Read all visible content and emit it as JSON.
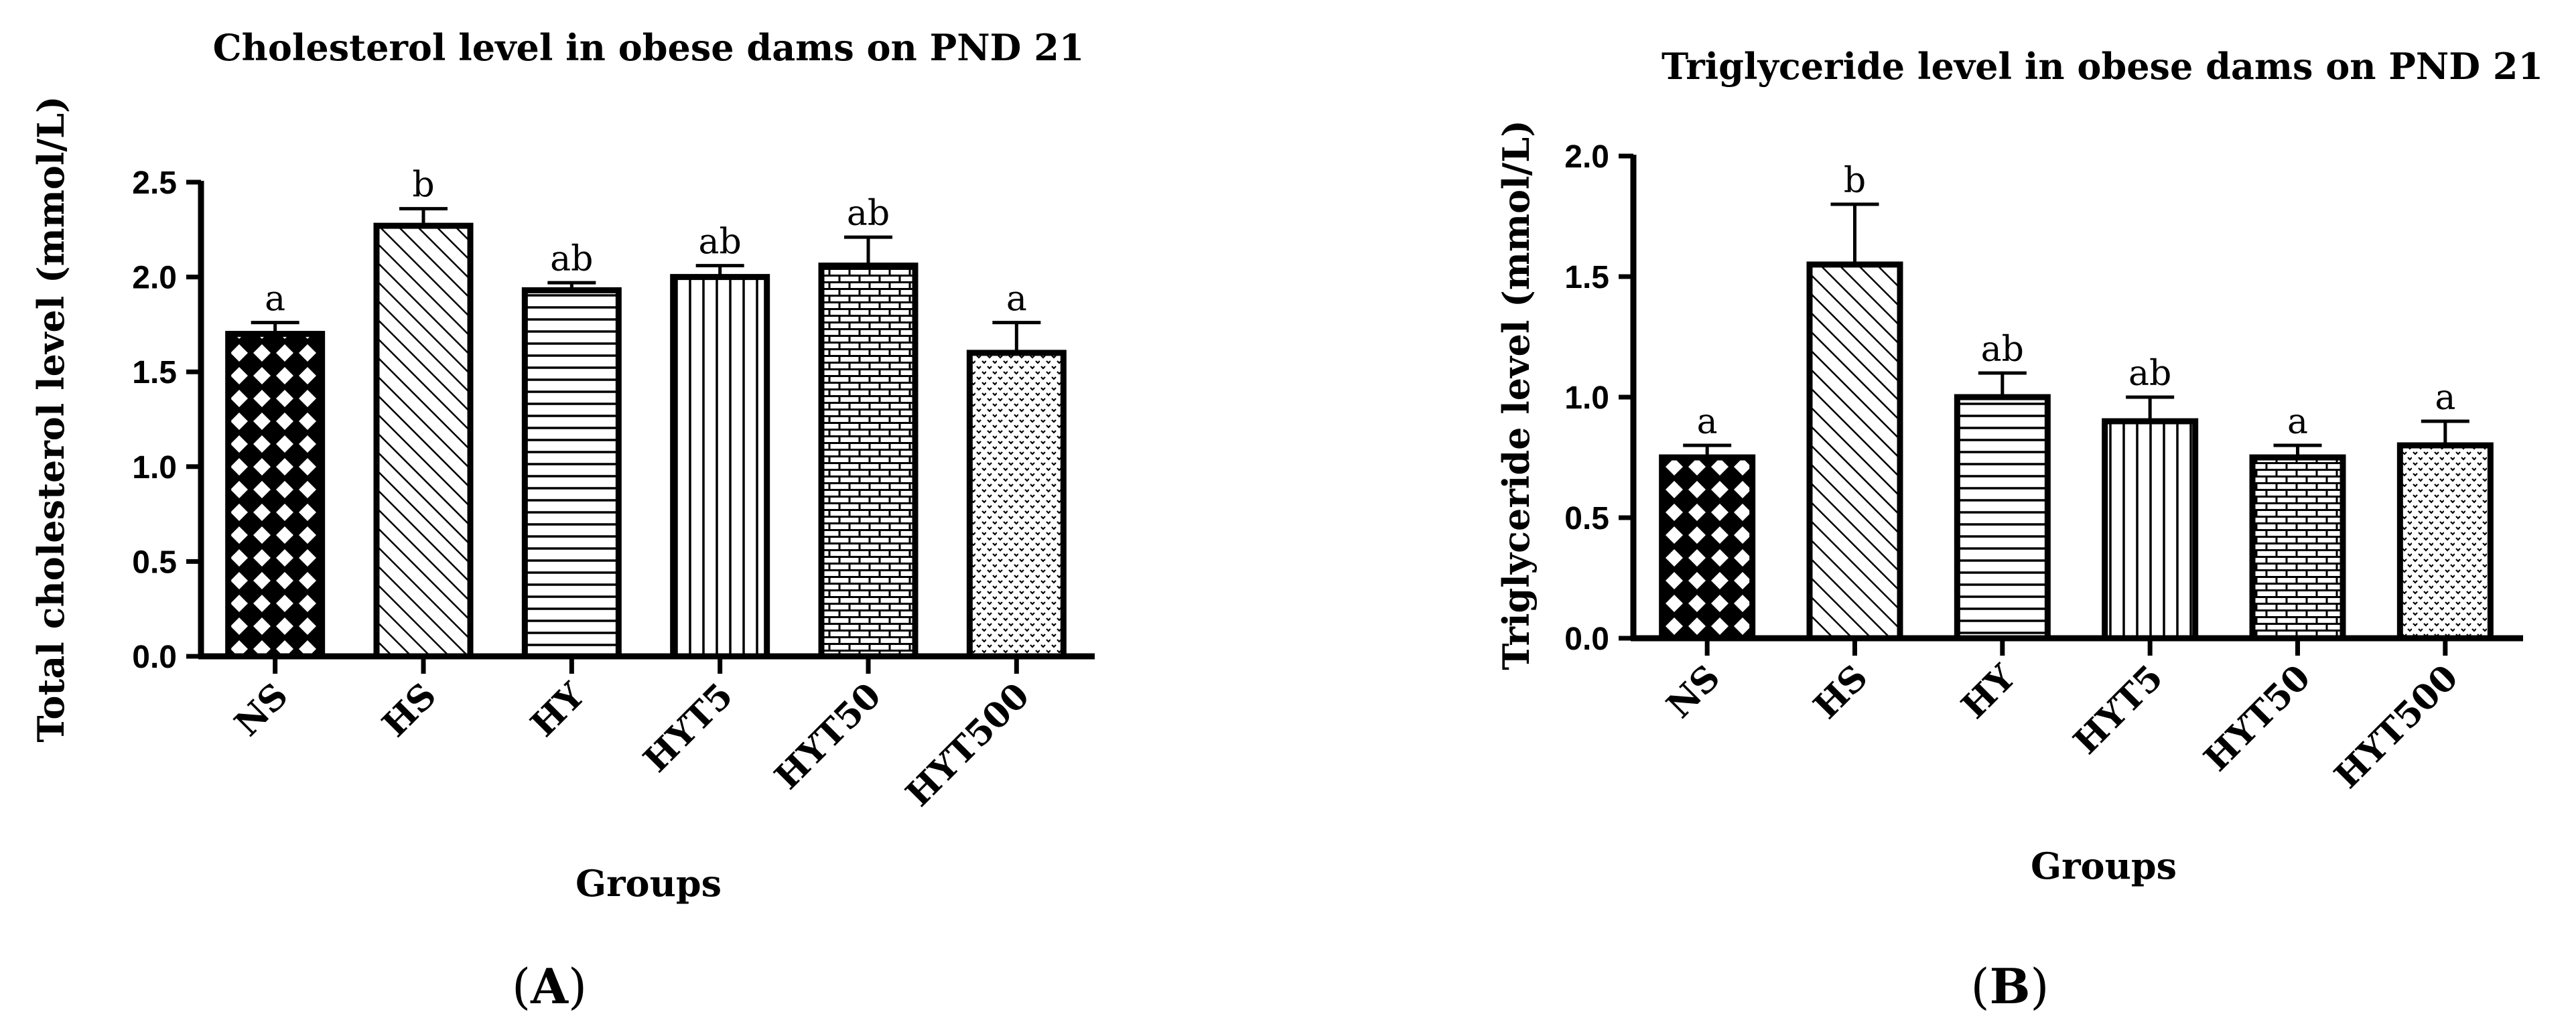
{
  "colors": {
    "ink": "#000000",
    "background": "#ffffff"
  },
  "chart_data": [
    {
      "id": "A",
      "type": "bar",
      "panel_label": {
        "open": "(",
        "letter": "A",
        "close": ")"
      },
      "title": "Cholesterol level in obese dams on PND 21",
      "xlabel": "Groups",
      "ylabel": "Total cholesterol level (mmol/L)",
      "ylim": [
        0,
        2.5
      ],
      "yticks": [
        "0.0",
        "0.5",
        "1.0",
        "1.5",
        "2.0",
        "2.5"
      ],
      "categories": [
        "NS",
        "HS",
        "HY",
        "HYT5",
        "HYT50",
        "HYT500"
      ],
      "patterns": [
        "crosshatch-diamond",
        "diagonal",
        "horizontal",
        "vertical",
        "brick",
        "dots"
      ],
      "values": [
        1.7,
        2.27,
        1.93,
        2.0,
        2.06,
        1.6
      ],
      "errors": [
        0.06,
        0.09,
        0.04,
        0.06,
        0.15,
        0.16
      ],
      "significance": [
        "a",
        "b",
        "ab",
        "ab",
        "ab",
        "a"
      ]
    },
    {
      "id": "B",
      "type": "bar",
      "panel_label": {
        "open": "(",
        "letter": "B",
        "close": ")"
      },
      "title": "Triglyceride level in obese dams on PND 21",
      "xlabel": "Groups",
      "ylabel": "Triglyceride level (mmol/L)",
      "ylim": [
        0,
        2.0
      ],
      "yticks": [
        "0.0",
        "0.5",
        "1.0",
        "1.5",
        "2.0"
      ],
      "categories": [
        "NS",
        "HS",
        "HY",
        "HYT5",
        "HYT50",
        "HYT500"
      ],
      "patterns": [
        "crosshatch-diamond",
        "diagonal",
        "horizontal",
        "vertical",
        "brick",
        "dots"
      ],
      "values": [
        0.75,
        1.55,
        1.0,
        0.9,
        0.75,
        0.8
      ],
      "errors": [
        0.05,
        0.25,
        0.1,
        0.1,
        0.05,
        0.1
      ],
      "significance": [
        "a",
        "b",
        "ab",
        "ab",
        "a",
        "a"
      ]
    }
  ]
}
